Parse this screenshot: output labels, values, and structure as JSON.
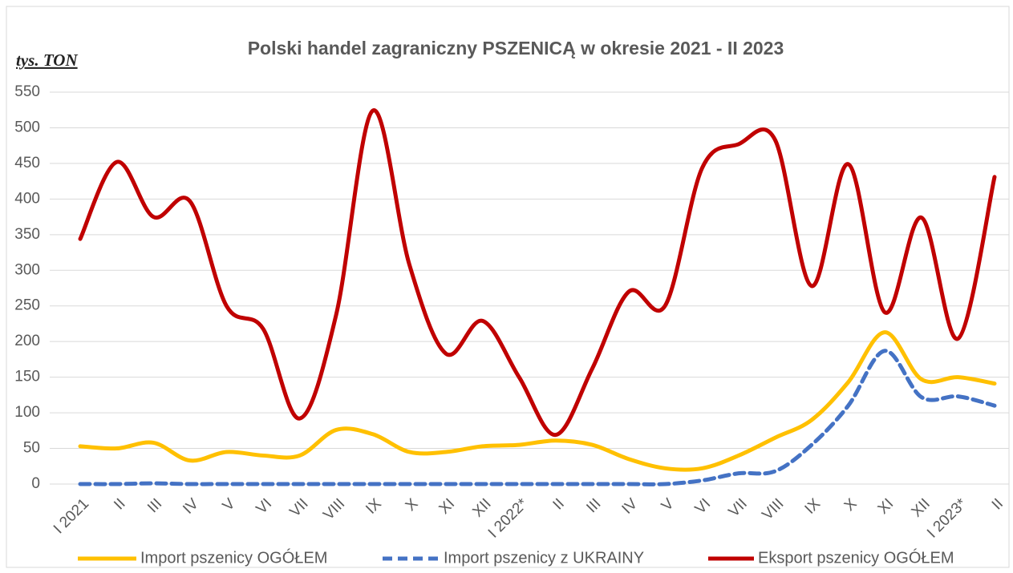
{
  "chart_data": {
    "type": "line",
    "title": "Polski handel zagraniczny PSZENICĄ w okresie 2021 - II 2023",
    "y_label": "tys. TON",
    "categories": [
      "I 2021",
      "II",
      "III",
      "IV",
      "V",
      "VI",
      "VII",
      "VIII",
      "IX",
      "X",
      "XI",
      "XII",
      "I 2022*",
      "II",
      "III",
      "IV",
      "V",
      "VI",
      "VII",
      "VIII",
      "IX",
      "X",
      "XI",
      "XII",
      "I 2023*",
      "II"
    ],
    "series": [
      {
        "name": "Import pszenicy OGÓŁEM",
        "color": "#ffc000",
        "dash": false,
        "values": [
          53,
          50,
          58,
          33,
          45,
          40,
          40,
          76,
          70,
          45,
          45,
          53,
          55,
          61,
          55,
          35,
          22,
          22,
          40,
          65,
          90,
          143,
          213,
          147,
          150,
          141
        ]
      },
      {
        "name": "Import pszenicy z UKRAINY",
        "color": "#4472c4",
        "dash": true,
        "values": [
          0,
          0,
          1,
          0,
          0,
          0,
          0,
          0,
          0,
          0,
          0,
          0,
          0,
          0,
          0,
          0,
          0,
          5,
          15,
          18,
          55,
          110,
          187,
          122,
          123,
          110
        ]
      },
      {
        "name": "Eksport pszenicy OGÓŁEM",
        "color": "#c00000",
        "dash": false,
        "values": [
          344,
          452,
          375,
          397,
          250,
          218,
          92,
          238,
          524,
          308,
          183,
          229,
          150,
          69,
          162,
          270,
          251,
          443,
          477,
          483,
          278,
          449,
          241,
          374,
          204,
          431
        ]
      }
    ],
    "ylim": [
      0,
      550
    ],
    "yticks": [
      0,
      50,
      100,
      150,
      200,
      250,
      300,
      350,
      400,
      450,
      500,
      550
    ],
    "grid": true,
    "legend": "bottom"
  }
}
